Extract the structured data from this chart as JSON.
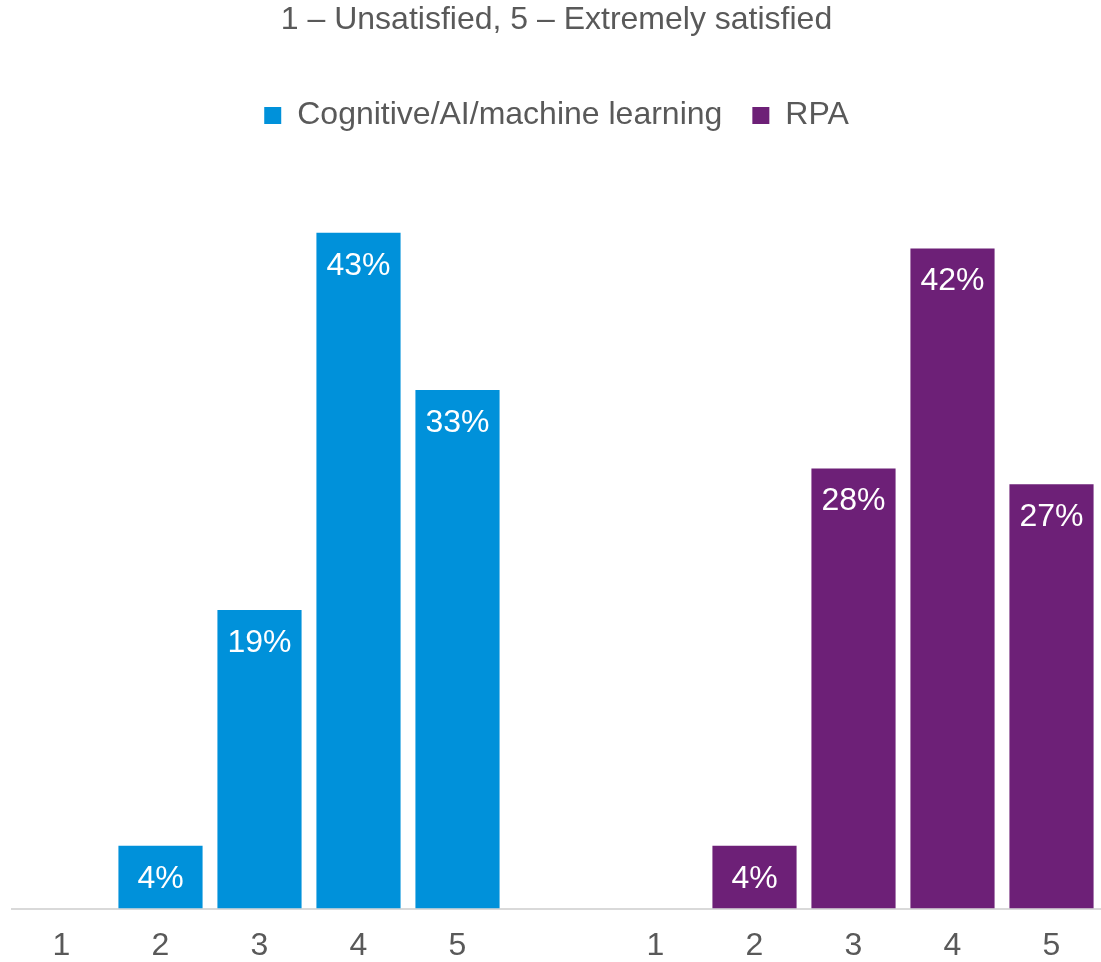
{
  "chart_data": {
    "type": "bar",
    "title": "1 – Unsatisfied, 5 – Extremely satisfied",
    "categories": [
      "1",
      "2",
      "3",
      "4",
      "5",
      null,
      "1",
      "2",
      "3",
      "4",
      "5"
    ],
    "series": [
      {
        "name": "Cognitive/AI/machine learning",
        "color": "#0091da",
        "values": [
          null,
          4,
          19,
          43,
          33,
          null,
          null,
          null,
          null,
          null,
          null
        ],
        "value_labels": [
          null,
          "4%",
          "19%",
          "43%",
          "33%",
          null,
          null,
          null,
          null,
          null,
          null
        ]
      },
      {
        "name": "RPA",
        "color": "#6d2077",
        "values": [
          null,
          null,
          null,
          null,
          null,
          null,
          null,
          4,
          28,
          42,
          27
        ],
        "value_labels": [
          null,
          null,
          null,
          null,
          null,
          null,
          null,
          "4%",
          "28%",
          "42%",
          "27%"
        ]
      }
    ],
    "legend": "top",
    "tick_labels": "x"
  }
}
